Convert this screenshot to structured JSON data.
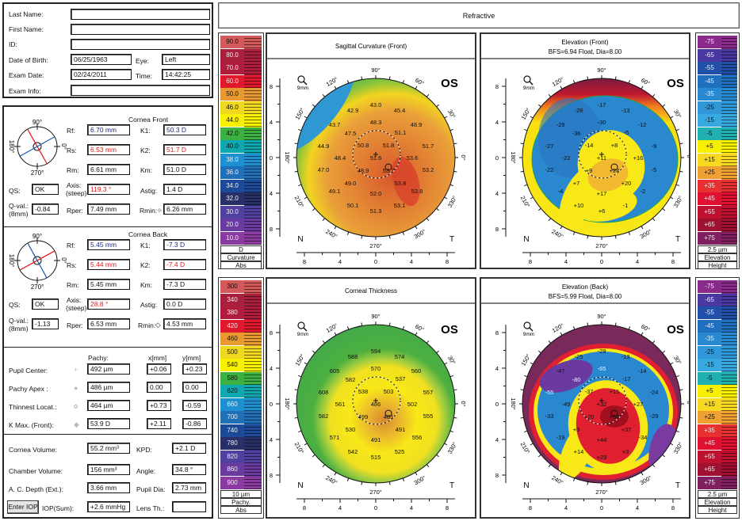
{
  "patient": {
    "last_name_label": "Last Name:",
    "last_name": "",
    "first_name_label": "First Name:",
    "first_name": "",
    "id_label": "ID:",
    "id": "",
    "dob_label": "Date of Birth:",
    "dob": "06/25/1963",
    "eye_label": "Eye:",
    "eye": "Left",
    "exam_date_label": "Exam Date:",
    "exam_date": "02/24/2011",
    "time_label": "Time:",
    "time": "14:42:25",
    "exam_info_label": "Exam Info:",
    "exam_info": ""
  },
  "cornea_front": {
    "title": "Cornea Front",
    "diagram_labels": {
      "top": "90°",
      "right": "0°",
      "bottom": "270°",
      "left": "180°"
    },
    "steep_axis_deg": 119.3,
    "rf_label": "Rf:",
    "rf": "6.70 mm",
    "rs_label": "Rs:",
    "rs": "6.53 mm",
    "rm_label": "Rm:",
    "rm": "6.61 mm",
    "k1_label": "K1:",
    "k1": "50.3 D",
    "k2_label": "K2:",
    "k2": "51.7 D",
    "km_label": "Km:",
    "km": "51.0 D",
    "qs_label": "QS:",
    "qs": "OK",
    "axis_label": "Axis:",
    "axis_sub": "(steep)",
    "axis": "119.3 °",
    "astig_label": "Astig:",
    "astig": "1.4 D",
    "qval_label": "Q-val.:",
    "qval_sub": "(8mm)",
    "qval": "-0.84",
    "rper_label": "Rper:",
    "rper": "7.49 mm",
    "rmin_label": "Rmin:",
    "rmin": "6.26 mm"
  },
  "cornea_back": {
    "title": "Cornea Back",
    "diagram_labels": {
      "top": "90°",
      "right": "0°",
      "bottom": "270°",
      "left": "180°"
    },
    "steep_axis_deg": 28.8,
    "rf_label": "Rf:",
    "rf": "5.45 mm",
    "rs_label": "Rs:",
    "rs": "5.44 mm",
    "rm_label": "Rm:",
    "rm": "5.45 mm",
    "k1_label": "K1:",
    "k1": "-7.3 D",
    "k2_label": "K2:",
    "k2": "-7.4 D",
    "km_label": "Km:",
    "km": "-7.3 D",
    "qs_label": "QS:",
    "qs": "OK",
    "axis_label": "Axis:",
    "axis_sub": "(steep)",
    "axis": "28.8 °",
    "astig_label": "Astig:",
    "astig": "0.0 D",
    "qval_label": "Q-val.:",
    "qval_sub": "(8mm)",
    "qval": "-1.13",
    "rper_label": "Rper:",
    "rper": "6.53 mm",
    "rmin_label": "Rmin:",
    "rmin": "4.53 mm"
  },
  "pachy": {
    "col_pachy": "Pachy:",
    "col_x": "x[mm]",
    "col_y": "y[mm]",
    "rows": [
      {
        "label": "Pupil Center:",
        "symbol": "+",
        "value": "492 µm",
        "x": "+0.06",
        "y": "+0.23"
      },
      {
        "label": "Pachy Apex :",
        "symbol": "●",
        "value": "486 µm",
        "x": "0.00",
        "y": "0.00"
      },
      {
        "label": "Thinnest Locat.:",
        "symbol": "○",
        "value": "464 µm",
        "x": "+0.73",
        "y": "-0.59"
      },
      {
        "label": "K Max. (Front):",
        "symbol": "◆",
        "value": "53.9 D",
        "x": "+2.11",
        "y": "-0.86"
      }
    ]
  },
  "volumes": {
    "cornea_volume_label": "Cornea Volume:",
    "cornea_volume": "55.2 mm³",
    "kpd_label": "KPD:",
    "kpd": "+2.1 D",
    "chamber_volume_label": "Chamber Volume:",
    "chamber_volume": "156 mm³",
    "angle_label": "Angle:",
    "angle": "34.8 °",
    "ac_depth_label": "A. C. Depth (Ext.):",
    "ac_depth": "3.66 mm",
    "pupil_dia_label": "Pupil Dia:",
    "pupil_dia": "2.73 mm",
    "enter_iop_button": "Enter IOP",
    "iop_label": "IOP(Sum):",
    "iop": "+2.6 mmHg",
    "lens_th_label": "Lens Th.:",
    "lens_th": ""
  },
  "header": {
    "title": "Refractive"
  },
  "maps": [
    {
      "title": "Sagittal Curvature (Front)",
      "subtitle": "",
      "eye": "OS",
      "zoom_label": "9mm",
      "nasal": "N",
      "temporal": "T",
      "angle_labels": [
        "90°",
        "60°",
        "30°",
        "0°",
        "330°",
        "300°",
        "270°",
        "240°",
        "210°",
        "180°",
        "150°",
        "120°"
      ],
      "axis_ticks": [
        "8",
        "4",
        "0",
        "4",
        "8"
      ],
      "values": [
        "43.0",
        "42.9",
        "45.4",
        "43.7",
        "48.3",
        "48.9",
        "47.5",
        "51.1",
        "44.9",
        "50.8",
        "51.8",
        "51.7",
        "48.4",
        "51.6",
        "53.6",
        "47.0",
        "48.9",
        "53.7",
        "53.2",
        "49.0",
        "53.8",
        "49.1",
        "52.0",
        "53.8",
        "50.1",
        "53.1",
        "51.3"
      ]
    },
    {
      "title": "Elevation (Front)",
      "subtitle": "BFS=6.94 Float, Dia=8.00",
      "eye": "OS",
      "zoom_label": "9mm",
      "nasal": "N",
      "temporal": "T",
      "angle_labels": [
        "90°",
        "60°",
        "30°",
        "0°",
        "330°",
        "300°",
        "270°",
        "240°",
        "210°",
        "180°",
        "150°",
        "120°"
      ],
      "axis_ticks": [
        "8",
        "4",
        "0",
        "4",
        "8"
      ],
      "values": [
        "-17",
        "-28",
        "-13",
        "-29",
        "-30",
        "-12",
        "-36",
        "-5",
        "-27",
        "-14",
        "+8",
        "-9",
        "-22",
        "+11",
        "+16",
        "-22",
        "+9",
        "+24",
        "-5",
        "+7",
        "+20",
        "-4",
        "+17",
        "-2",
        "+10",
        "-1",
        "+6"
      ]
    },
    {
      "title": "Corneal Thickness",
      "subtitle": "",
      "eye": "OS",
      "zoom_label": "9mm",
      "nasal": "N",
      "temporal": "T",
      "angle_labels": [
        "90°",
        "60°",
        "30°",
        "0°",
        "330°",
        "300°",
        "270°",
        "240°",
        "210°",
        "180°",
        "150°",
        "120°"
      ],
      "axis_ticks": [
        "8",
        "4",
        "0",
        "4",
        "8"
      ],
      "values": [
        "594",
        "588",
        "574",
        "605",
        "570",
        "560",
        "582",
        "537",
        "608",
        "538",
        "503",
        "557",
        "561",
        "486",
        "502",
        "582",
        "499",
        "485",
        "555",
        "530",
        "491",
        "571",
        "491",
        "556",
        "542",
        "525",
        "515"
      ]
    },
    {
      "title": "Elevation (Back)",
      "subtitle": "BFS=5.99 Float, Dia=8.00",
      "eye": "OS",
      "zoom_label": "9mm",
      "nasal": "N",
      "temporal": "T",
      "angle_labels": [
        "90°",
        "60°",
        "30°",
        "0°",
        "330°",
        "300°",
        "270°",
        "240°",
        "210°",
        "180°",
        "150°",
        "120°"
      ],
      "axis_ticks": [
        "8",
        "4",
        "0",
        "4",
        "8"
      ],
      "values": [
        "-29",
        "-25",
        "-13",
        "-47",
        "-65",
        "-14",
        "-80",
        "-17",
        "-55",
        "-37",
        "+15",
        "-24",
        "-49",
        "+32",
        "+27",
        "-33",
        "+20",
        "+54",
        "-29",
        "+3",
        "+37",
        "-19",
        "+44",
        "-34",
        "+14",
        "+3",
        "+29"
      ]
    }
  ],
  "scales": [
    {
      "labels": [
        "90.0",
        "80.0",
        "70.0",
        "60.0",
        "50.0",
        "46.0",
        "44.0",
        "42.0",
        "40.0",
        "38.0",
        "36.0",
        "34.0",
        "32.0",
        "30.0",
        "20.0",
        "10.0"
      ],
      "colors": [
        "#d25a5a",
        "#a8203c",
        "#b01c3c",
        "#e0182c",
        "#e89a30",
        "#f0d820",
        "#f8f000",
        "#3cb040",
        "#10a8b0",
        "#1c90d0",
        "#2070b8",
        "#1c4a98",
        "#283068",
        "#5040a0",
        "#6a3aa0",
        "#8a3aa0"
      ],
      "unit": "D",
      "type": "Curvature",
      "mode": "Abs"
    },
    {
      "labels": [
        "-75",
        "-65",
        "-55",
        "-45",
        "-35",
        "-25",
        "-15",
        "-5",
        "+5",
        "+15",
        "+25",
        "+35",
        "+45",
        "+55",
        "+65",
        "+75"
      ],
      "colors": [
        "#8a2a8a",
        "#4838a0",
        "#2050a8",
        "#2070c0",
        "#2888d0",
        "#3098d8",
        "#38a8e0",
        "#20b0b0",
        "#f8f000",
        "#f8d820",
        "#f0a030",
        "#e83030",
        "#e01030",
        "#c01030",
        "#a01030",
        "#802060"
      ],
      "unit": "2.5 µm",
      "type": "Elevation",
      "mode": "Height"
    },
    {
      "labels": [
        "300",
        "340",
        "380",
        "420",
        "460",
        "500",
        "540",
        "580",
        "620",
        "660",
        "700",
        "740",
        "780",
        "820",
        "860",
        "900"
      ],
      "colors": [
        "#d25a5a",
        "#a8203c",
        "#b01c3c",
        "#e0182c",
        "#e89a30",
        "#f0d820",
        "#f8f000",
        "#3cb040",
        "#10a8b0",
        "#1c90d0",
        "#2070b8",
        "#1c4a98",
        "#283068",
        "#5040a0",
        "#6a3aa0",
        "#8a3aa0"
      ],
      "unit": "10 µm",
      "type": "Pachy.",
      "mode": "Abs"
    },
    {
      "labels": [
        "-75",
        "-65",
        "-55",
        "-45",
        "-35",
        "-25",
        "-15",
        "-5",
        "+5",
        "+15",
        "+25",
        "+35",
        "+45",
        "+55",
        "+65",
        "+75"
      ],
      "colors": [
        "#8a2a8a",
        "#4838a0",
        "#2050a8",
        "#2070c0",
        "#2888d0",
        "#3098d8",
        "#38a8e0",
        "#20b0b0",
        "#f8f000",
        "#f8d820",
        "#f0a030",
        "#e83030",
        "#e01030",
        "#c01030",
        "#a01030",
        "#802060"
      ],
      "unit": "2.5 µm",
      "type": "Elevation",
      "mode": "Height"
    }
  ],
  "colors": {
    "steep": "#e01818",
    "flat": "#1a5ab0",
    "frame": "#222222"
  }
}
